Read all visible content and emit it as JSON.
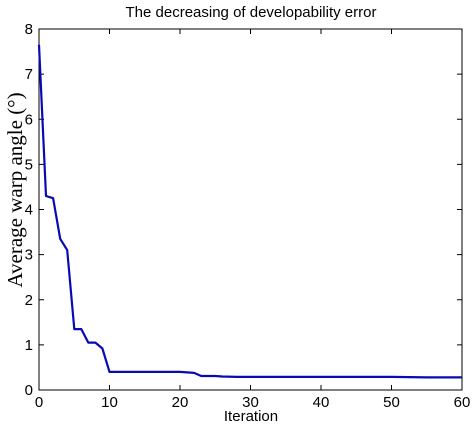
{
  "chart_data": {
    "type": "line",
    "title": "The decreasing of developability error",
    "xlabel": "Iteration",
    "ylabel": "Average warp angle (°)",
    "xlim": [
      0,
      60
    ],
    "ylim": [
      0,
      8
    ],
    "xticks": [
      "0",
      "10",
      "20",
      "30",
      "40",
      "50",
      "60"
    ],
    "yticks": [
      "0",
      "1",
      "2",
      "3",
      "4",
      "5",
      "6",
      "7",
      "8"
    ],
    "grid": false,
    "series": [
      {
        "color": "#0a0ab4",
        "x": [
          0,
          1,
          2,
          3,
          4,
          5,
          6,
          7,
          8,
          9,
          10,
          20,
          21,
          22,
          23,
          25,
          26,
          28,
          30,
          40,
          50,
          55,
          60
        ],
        "y": [
          7.65,
          4.3,
          4.25,
          3.35,
          3.1,
          1.35,
          1.35,
          1.05,
          1.05,
          0.92,
          0.4,
          0.4,
          0.39,
          0.38,
          0.31,
          0.31,
          0.3,
          0.29,
          0.29,
          0.29,
          0.29,
          0.28,
          0.28
        ]
      }
    ]
  }
}
